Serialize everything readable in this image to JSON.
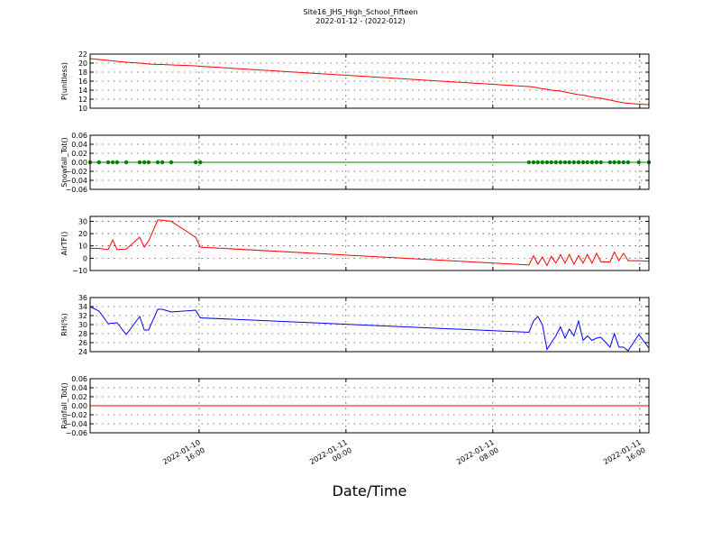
{
  "figure": {
    "title": "Site16_JHS_High_School_Fifteen",
    "subtitle": "2022-01-12 - (2022-012)",
    "xlabel": "Date/Time",
    "xlim": [
      "2022-01-10 10:04",
      "2022-01-11 16:30"
    ],
    "xticks": [
      "2022-01-10 16:00",
      "2022-01-11 00:00",
      "2022-01-11 08:00",
      "2022-01-11 16:00"
    ],
    "x": [
      "2022-01-10 10:04",
      "2022-01-10 10:33",
      "2022-01-10 11:03",
      "2022-01-10 11:18",
      "2022-01-10 11:32",
      "2022-01-10 12:02",
      "2022-01-10 12:46",
      "2022-01-10 13:01",
      "2022-01-10 13:15",
      "2022-01-10 13:45",
      "2022-01-10 14:00",
      "2022-01-10 14:29",
      "2022-01-10 15:49",
      "2022-01-10 16:04",
      "2022-01-11 09:58",
      "2022-01-11 10:13",
      "2022-01-11 10:27",
      "2022-01-11 10:42",
      "2022-01-11 10:57",
      "2022-01-11 11:11",
      "2022-01-11 11:26",
      "2022-01-11 11:41",
      "2022-01-11 11:56",
      "2022-01-11 12:10",
      "2022-01-11 12:25",
      "2022-01-11 12:40",
      "2022-01-11 12:55",
      "2022-01-11 13:09",
      "2022-01-11 13:24",
      "2022-01-11 13:39",
      "2022-01-11 13:53",
      "2022-01-11 14:23",
      "2022-01-11 14:37",
      "2022-01-11 14:52",
      "2022-01-11 15:07",
      "2022-01-11 15:22",
      "2022-01-11 15:57",
      "2022-01-11 16:30"
    ]
  },
  "chart_data": [
    {
      "type": "line",
      "ylabel": "P(unitless)",
      "ylim": [
        10,
        22
      ],
      "yticks": [
        10,
        12,
        14,
        16,
        18,
        20,
        22
      ],
      "grid": true,
      "series": [
        {
          "color": "#ff0000",
          "marker": false,
          "values": [
            21,
            20.8,
            20.6,
            20.5,
            20.4,
            20.2,
            20.0,
            19.9,
            19.8,
            19.7,
            19.7,
            19.6,
            19.4,
            19.3,
            14.8,
            14.7,
            14.5,
            14.3,
            14.2,
            14.0,
            13.9,
            13.8,
            13.6,
            13.4,
            13.2,
            13.0,
            12.9,
            12.7,
            12.5,
            12.3,
            12.2,
            11.8,
            11.6,
            11.4,
            11.2,
            11.1,
            10.9,
            10.8
          ]
        }
      ]
    },
    {
      "type": "line",
      "ylabel": "Snowfall_Tot()",
      "ylim": [
        -0.06,
        0.06
      ],
      "grid": true,
      "yticks": [
        {
          "value": -0.06,
          "label": "−0.06"
        },
        {
          "value": -0.04,
          "label": "−0.04"
        },
        {
          "value": -0.02,
          "label": "−0.02"
        },
        {
          "value": 0,
          "label": "0.00"
        },
        {
          "value": 0.02,
          "label": "0.02"
        },
        {
          "value": 0.04,
          "label": "0.04"
        },
        {
          "value": 0.06,
          "label": "0.06"
        }
      ],
      "series": [
        {
          "color": "#008000",
          "marker": true,
          "values": [
            0,
            0,
            0,
            0,
            0,
            0,
            0,
            0,
            0,
            0,
            0,
            0,
            0,
            0,
            0,
            0,
            0,
            0,
            0,
            0,
            0,
            0,
            0,
            0,
            0,
            0,
            0,
            0,
            0,
            0,
            0,
            0,
            0,
            0,
            0,
            0,
            0,
            0
          ]
        }
      ]
    },
    {
      "type": "line",
      "ylabel": "AirTF()",
      "ylim": [
        -10,
        34
      ],
      "grid": true,
      "yticks": [
        {
          "value": -10,
          "label": "−10"
        },
        0,
        10,
        20,
        30
      ],
      "series": [
        {
          "color": "#ff0000",
          "marker": false,
          "values": [
            8,
            8,
            7,
            15,
            7,
            7.5,
            17,
            9,
            14,
            31,
            31,
            30,
            17,
            9,
            -5.5,
            2,
            -5,
            1,
            -6,
            1.5,
            -4,
            3,
            -4,
            3,
            -5,
            2,
            -4,
            3,
            -4,
            4,
            -3,
            -3,
            5,
            -2,
            4,
            -2,
            -2,
            -2.5
          ]
        }
      ]
    },
    {
      "type": "line",
      "ylabel": "RH(%)",
      "ylim": [
        24,
        36
      ],
      "yticks": [
        24,
        26,
        28,
        30,
        32,
        34,
        36
      ],
      "grid": true,
      "series": [
        {
          "color": "#0000ff",
          "marker": false,
          "values": [
            34,
            33,
            30.2,
            30.3,
            30.4,
            27.8,
            31.8,
            28.8,
            28.8,
            33.4,
            33.4,
            32.8,
            33.2,
            31.5,
            28.3,
            30.8,
            31.8,
            30,
            24.5,
            26,
            27.5,
            29.5,
            27,
            29,
            27.5,
            30.8,
            26.5,
            27.5,
            26.5,
            27,
            27.2,
            25,
            28,
            25,
            25,
            24.2,
            27.8,
            24.8
          ]
        }
      ]
    },
    {
      "type": "line",
      "ylabel": "Rainfall_Tot()",
      "ylim": [
        -0.06,
        0.06
      ],
      "grid": true,
      "yticks": [
        {
          "value": -0.06,
          "label": "−0.06"
        },
        {
          "value": -0.04,
          "label": "−0.04"
        },
        {
          "value": -0.02,
          "label": "−0.02"
        },
        {
          "value": 0,
          "label": "0.00"
        },
        {
          "value": 0.02,
          "label": "0.02"
        },
        {
          "value": 0.04,
          "label": "0.04"
        },
        {
          "value": 0.06,
          "label": "0.06"
        }
      ],
      "series": [
        {
          "color": "#ff0000",
          "marker": false,
          "values": [
            0,
            0,
            0,
            0,
            0,
            0,
            0,
            0,
            0,
            0,
            0,
            0,
            0,
            0,
            0,
            0,
            0,
            0,
            0,
            0,
            0,
            0,
            0,
            0,
            0,
            0,
            0,
            0,
            0,
            0,
            0,
            0,
            0,
            0,
            0,
            0,
            0,
            0
          ]
        }
      ]
    }
  ]
}
